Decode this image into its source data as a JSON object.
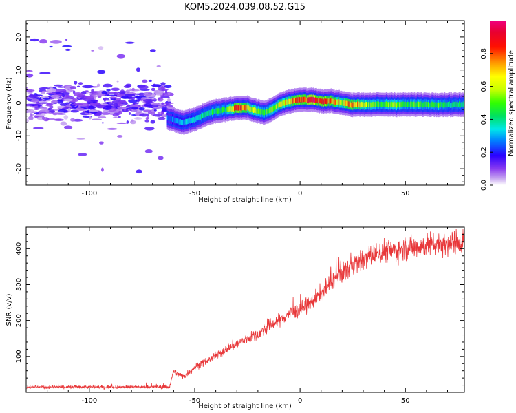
{
  "title": "KOM5.2024.039.08.52.G15",
  "chart_data": [
    {
      "type": "heatmap",
      "xlabel": "Height of straight line (km)",
      "ylabel": "Frequency (Hz)",
      "xlim": [
        -130,
        78
      ],
      "ylim": [
        -25,
        25
      ],
      "xticks": [
        -100,
        -50,
        0,
        50
      ],
      "yticks": [
        -20,
        -10,
        0,
        10,
        20
      ],
      "grid": false,
      "colorbar": {
        "label": "Normalized spectral amplitude",
        "range": [
          0,
          1
        ],
        "ticks": [
          0.0,
          0.2,
          0.4,
          0.6,
          0.8
        ],
        "tick_labels": [
          "0.0",
          "0.2",
          "0.4",
          "0.6",
          "0.8"
        ],
        "colormap": "rainbow"
      },
      "noise_region": {
        "x_range": [
          -130,
          -62
        ],
        "freq_center": 0,
        "freq_spread": 7,
        "amplitude": 0.1
      },
      "signal_ridge": {
        "x": [
          -63,
          -58,
          -55,
          -50,
          -45,
          -40,
          -35,
          -30,
          -25,
          -20,
          -17,
          -15,
          -12,
          -10,
          -5,
          0,
          5,
          10,
          15,
          20,
          25,
          30,
          35,
          40,
          45,
          50,
          55,
          60,
          65,
          70,
          78
        ],
        "freq": [
          -4.5,
          -5.5,
          -6,
          -5,
          -3.5,
          -2.5,
          -2,
          -1.5,
          -1.5,
          -2.5,
          -3,
          -2.5,
          -1.5,
          -0.5,
          0.5,
          1,
          1,
          0.5,
          0.5,
          0,
          -0.5,
          -0.5,
          -0.5,
          -0.5,
          -0.5,
          -0.5,
          -0.5,
          -0.5,
          -0.5,
          -0.5,
          -0.5
        ],
        "amplitude": [
          0.25,
          0.3,
          0.3,
          0.35,
          0.4,
          0.45,
          0.45,
          0.85,
          0.7,
          0.5,
          0.45,
          0.5,
          0.55,
          0.6,
          0.7,
          0.8,
          0.9,
          0.85,
          0.75,
          0.6,
          0.8,
          0.6,
          0.5,
          0.45,
          0.6,
          0.45,
          0.5,
          0.45,
          0.5,
          0.4,
          0.4
        ]
      }
    },
    {
      "type": "line",
      "xlabel": "Height of straight line (km)",
      "ylabel": "SNR (v/v)",
      "xlim": [
        -130,
        78
      ],
      "ylim": [
        0,
        460
      ],
      "xticks": [
        -100,
        -50,
        0,
        50
      ],
      "yticks": [
        100,
        200,
        300,
        400
      ],
      "grid": false,
      "color": "#e8383a",
      "x": [
        -130,
        -110,
        -90,
        -70,
        -62,
        -60,
        -58,
        -55,
        -50,
        -45,
        -40,
        -35,
        -30,
        -25,
        -20,
        -15,
        -10,
        -5,
        0,
        5,
        10,
        15,
        20,
        25,
        30,
        35,
        40,
        45,
        50,
        55,
        60,
        65,
        70,
        75,
        78
      ],
      "y": [
        15,
        15,
        15,
        15,
        15,
        60,
        50,
        45,
        70,
        85,
        100,
        120,
        135,
        150,
        160,
        185,
        200,
        220,
        230,
        250,
        275,
        310,
        330,
        355,
        370,
        385,
        395,
        395,
        400,
        405,
        410,
        415,
        415,
        420,
        425
      ]
    }
  ]
}
